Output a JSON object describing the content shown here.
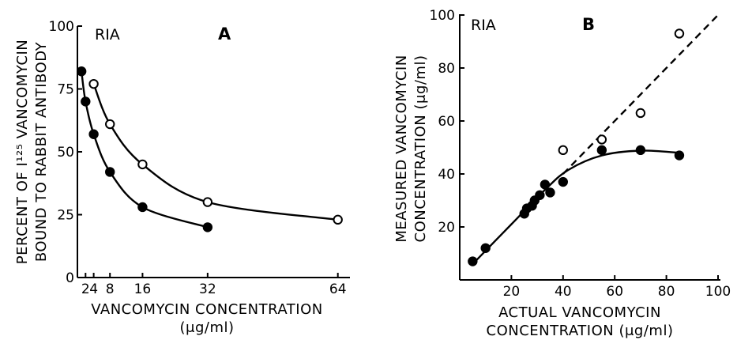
{
  "chart_data": [
    {
      "type": "line",
      "panel_label": "A",
      "assay_label": "RIA",
      "ylabel_line1": "PERCENT OF I¹²⁵ VANCOMYCIN",
      "ylabel_line2": "BOUND TO RABBIT ANTIBODY",
      "xlabel_line1": "VANCOMYCIN CONCENTRATION",
      "xlabel_line2": "(μg/ml)",
      "xlim": [
        0,
        66
      ],
      "ylim": [
        0,
        100
      ],
      "x_ticks": [
        2,
        4,
        8,
        16,
        32,
        64
      ],
      "x_tick_labels": [
        "2",
        "4",
        "8",
        "16",
        "32",
        "64"
      ],
      "y_ticks": [
        0,
        25,
        50,
        75,
        100
      ],
      "y_tick_labels": [
        "0",
        "25",
        "50",
        "75",
        "100"
      ],
      "grid": false,
      "series": [
        {
          "marker": "open-circle",
          "x": [
            4,
            8,
            16,
            32,
            64
          ],
          "y": [
            77,
            61,
            45,
            30,
            23
          ]
        },
        {
          "marker": "filled-circle",
          "x": [
            1,
            2,
            4,
            8,
            16,
            32
          ],
          "y": [
            82,
            70,
            57,
            42,
            28,
            20
          ]
        }
      ]
    },
    {
      "type": "scatter",
      "panel_label": "B",
      "assay_label": "RIA",
      "ylabel_line1": "MEASURED VANCOMYCIN",
      "ylabel_line2": "CONCENTRATION (μg/ml)",
      "xlabel_line1": "ACTUAL VANCOMYCIN",
      "xlabel_line2": "CONCENTRATION (μg/ml)",
      "xlim": [
        0,
        100
      ],
      "ylim": [
        0,
        100
      ],
      "x_ticks": [
        20,
        40,
        60,
        80,
        100
      ],
      "x_tick_labels": [
        "20",
        "40",
        "60",
        "80",
        "100"
      ],
      "y_ticks": [
        20,
        40,
        60,
        80,
        100
      ],
      "y_tick_labels": [
        "20",
        "40",
        "60",
        "80",
        "100"
      ],
      "grid": false,
      "reference_line": {
        "style": "dashed",
        "x": [
          40,
          100
        ],
        "y": [
          40,
          100
        ]
      },
      "series": [
        {
          "marker": "open-circle",
          "x": [
            40,
            55,
            70,
            85
          ],
          "y": [
            49,
            53,
            63,
            93
          ]
        },
        {
          "marker": "filled-circle",
          "x": [
            5,
            10,
            25,
            26,
            28,
            29,
            31,
            33,
            35,
            40,
            55,
            70,
            85
          ],
          "y": [
            7,
            12,
            25,
            27,
            28,
            30,
            32,
            36,
            33,
            37,
            49,
            49,
            47
          ]
        }
      ]
    }
  ]
}
